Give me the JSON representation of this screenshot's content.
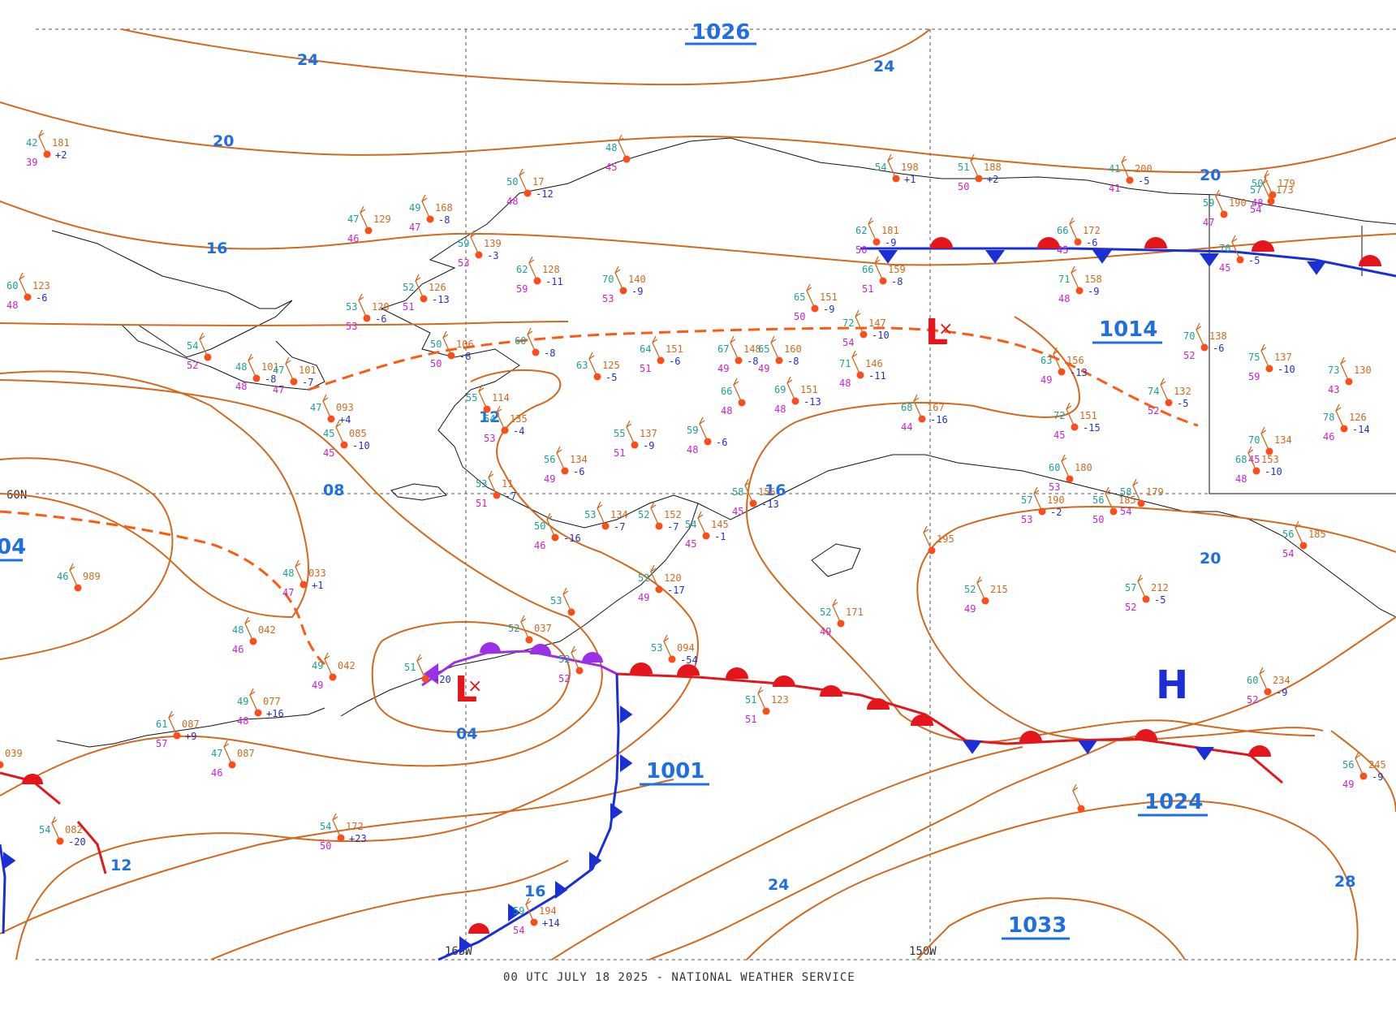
{
  "footer": "00 UTC JULY 18 2025 - NATIONAL WEATHER SERVICE",
  "grid_labels": {
    "lat_60": "60N",
    "lon_165": "165W",
    "lon_150": "150W"
  },
  "isobar_labels": [
    "24",
    "24",
    "20",
    "16",
    "12",
    "08",
    "04",
    "16",
    "20",
    "20",
    "12",
    "16",
    "24",
    "28"
  ],
  "pressure_centers": {
    "top": "1026",
    "left": "04",
    "low_mid": "1001",
    "high_mid": "1014",
    "high_se": "1024",
    "high_s": "1033"
  },
  "symbols": {
    "low": "L",
    "high": "H"
  },
  "colors": {
    "isobar": "#d2691e",
    "cold_front": "#1a2fd6",
    "warm_front": "#e4161b",
    "occluded_front": "#9b30e6",
    "trough": "#ff5a14",
    "label_blue": "#1f6fe0"
  },
  "stations": [
    {
      "t": "42",
      "p": "181",
      "d": "39",
      "tend": "+2"
    },
    {
      "t": "50",
      "p": "17",
      "d": "48",
      "tend": "-12"
    },
    {
      "t": "48",
      "p": "",
      "d": "45",
      "tend": ""
    },
    {
      "t": "49",
      "p": "168",
      "d": "47",
      "tend": "-8"
    },
    {
      "t": "47",
      "p": "129",
      "d": "46",
      "tend": ""
    },
    {
      "t": "60",
      "p": "123",
      "d": "48",
      "tend": "-6"
    },
    {
      "t": "59",
      "p": "139",
      "d": "53",
      "tend": "-3"
    },
    {
      "t": "62",
      "p": "128",
      "d": "59",
      "tend": "-11"
    },
    {
      "t": "70",
      "p": "140",
      "d": "53",
      "tend": "-9"
    },
    {
      "t": "52",
      "p": "126",
      "d": "51",
      "tend": "-13"
    },
    {
      "t": "53",
      "p": "120",
      "d": "53",
      "tend": "-6"
    },
    {
      "t": "54",
      "p": "",
      "d": "52",
      "tend": ""
    },
    {
      "t": "50",
      "p": "106",
      "d": "50",
      "tend": "-8"
    },
    {
      "t": "60",
      "p": "",
      "d": "",
      "tend": "-8"
    },
    {
      "t": "48",
      "p": "101",
      "d": "48",
      "tend": "-8"
    },
    {
      "t": "47",
      "p": "101",
      "d": "47",
      "tend": "-7"
    },
    {
      "t": "47",
      "p": "093",
      "d": "",
      "tend": "+4"
    },
    {
      "t": "45",
      "p": "085",
      "d": "45",
      "tend": "-10"
    },
    {
      "t": "55",
      "p": "114",
      "d": "",
      "tend": ""
    },
    {
      "t": "54",
      "p": "135",
      "d": "53",
      "tend": "-4"
    },
    {
      "t": "63",
      "p": "125",
      "d": "",
      "tend": "-5"
    },
    {
      "t": "56",
      "p": "134",
      "d": "49",
      "tend": "-6"
    },
    {
      "t": "55",
      "p": "137",
      "d": "51",
      "tend": "-9"
    },
    {
      "t": "59",
      "p": "",
      "d": "48",
      "tend": "-6"
    },
    {
      "t": "53",
      "p": "11",
      "d": "51",
      "tend": "-7"
    },
    {
      "t": "50",
      "p": "",
      "d": "46",
      "tend": "-16"
    },
    {
      "t": "53",
      "p": "134",
      "d": "",
      "tend": "-7"
    },
    {
      "t": "52",
      "p": "152",
      "d": "",
      "tend": "-7"
    },
    {
      "t": "54",
      "p": "145",
      "d": "45",
      "tend": "-1"
    },
    {
      "t": "52",
      "p": "120",
      "d": "49",
      "tend": "-17"
    },
    {
      "t": "58",
      "p": "156",
      "d": "45",
      "tend": "-13"
    },
    {
      "t": "64",
      "p": "151",
      "d": "51",
      "tend": "-6"
    },
    {
      "t": "67",
      "p": "148",
      "d": "49",
      "tend": "-8"
    },
    {
      "t": "65",
      "p": "160",
      "d": "49",
      "tend": "-8"
    },
    {
      "t": "66",
      "p": "",
      "d": "48",
      "tend": ""
    },
    {
      "t": "69",
      "p": "151",
      "d": "48",
      "tend": "-13"
    },
    {
      "t": "65",
      "p": "151",
      "d": "50",
      "tend": "-9"
    },
    {
      "t": "72",
      "p": "147",
      "d": "54",
      "tend": "-10"
    },
    {
      "t": "71",
      "p": "146",
      "d": "48",
      "tend": "-11"
    },
    {
      "t": "66",
      "p": "159",
      "d": "51",
      "tend": "-8"
    },
    {
      "t": "62",
      "p": "181",
      "d": "50",
      "tend": "-9"
    },
    {
      "t": "54",
      "p": "198",
      "d": "",
      "tend": "+1"
    },
    {
      "t": "51",
      "p": "188",
      "d": "50",
      "tend": "+2"
    },
    {
      "t": "41",
      "p": "200",
      "d": "41",
      "tend": "-5"
    },
    {
      "t": "66",
      "p": "172",
      "d": "45",
      "tend": "-6"
    },
    {
      "t": "71",
      "p": "158",
      "d": "48",
      "tend": "-9"
    },
    {
      "t": "59",
      "p": "190",
      "d": "47",
      "tend": ""
    },
    {
      "t": "57",
      "p": "173",
      "d": "54",
      "tend": ""
    },
    {
      "t": "50",
      "p": "179",
      "d": "48",
      "tend": ""
    },
    {
      "t": "70",
      "p": "",
      "d": "45",
      "tend": "-5"
    },
    {
      "t": "70",
      "p": "138",
      "d": "52",
      "tend": "-6"
    },
    {
      "t": "63",
      "p": "156",
      "d": "49",
      "tend": "-13"
    },
    {
      "t": "75",
      "p": "137",
      "d": "59",
      "tend": "-10"
    },
    {
      "t": "73",
      "p": "130",
      "d": "43",
      "tend": ""
    },
    {
      "t": "74",
      "p": "132",
      "d": "52",
      "tend": "-5"
    },
    {
      "t": "72",
      "p": "151",
      "d": "45",
      "tend": "-15"
    },
    {
      "t": "68",
      "p": "167",
      "d": "44",
      "tend": "-16"
    },
    {
      "t": "70",
      "p": "134",
      "d": "45",
      "tend": ""
    },
    {
      "t": "68",
      "p": "153",
      "d": "48",
      "tend": "-10"
    },
    {
      "t": "78",
      "p": "126",
      "d": "46",
      "tend": "-14"
    },
    {
      "t": "60",
      "p": "180",
      "d": "53",
      "tend": ""
    },
    {
      "t": "57",
      "p": "190",
      "d": "53",
      "tend": "-2"
    },
    {
      "t": "58",
      "p": "179",
      "d": "54",
      "tend": ""
    },
    {
      "t": "56",
      "p": "185",
      "d": "50",
      "tend": ""
    },
    {
      "t": "56",
      "p": "185",
      "d": "54",
      "tend": ""
    },
    {
      "t": "52",
      "p": "215",
      "d": "49",
      "tend": ""
    },
    {
      "t": "57",
      "p": "212",
      "d": "52",
      "tend": "-5"
    },
    {
      "t": "52",
      "p": "171",
      "d": "49",
      "tend": ""
    },
    {
      "t": "",
      "p": "195",
      "d": "",
      "tend": ""
    },
    {
      "t": "51",
      "p": "123",
      "d": "51",
      "tend": ""
    },
    {
      "t": "60",
      "p": "234",
      "d": "52",
      "tend": "-9"
    },
    {
      "t": "56",
      "p": "245",
      "d": "49",
      "tend": "-9"
    },
    {
      "t": "53",
      "p": "094",
      "d": "",
      "tend": "-54"
    },
    {
      "t": "52",
      "p": "037",
      "d": "",
      "tend": ""
    },
    {
      "t": "53",
      "p": "",
      "d": "",
      "tend": ""
    },
    {
      "t": "52",
      "p": "",
      "d": "52",
      "tend": ""
    },
    {
      "t": "51",
      "p": "",
      "d": "",
      "tend": "-20"
    },
    {
      "t": "48",
      "p": "033",
      "d": "47",
      "tend": "+1"
    },
    {
      "t": "46",
      "p": "989",
      "d": "",
      "tend": ""
    },
    {
      "t": "48",
      "p": "042",
      "d": "46",
      "tend": ""
    },
    {
      "t": "49",
      "p": "042",
      "d": "49",
      "tend": ""
    },
    {
      "t": "49",
      "p": "077",
      "d": "48",
      "tend": "+16"
    },
    {
      "t": "61",
      "p": "087",
      "d": "57",
      "tend": "+9"
    },
    {
      "t": "47",
      "p": "087",
      "d": "46",
      "tend": ""
    },
    {
      "t": "54",
      "p": "172",
      "d": "50",
      "tend": "+23"
    },
    {
      "t": "54",
      "p": "082",
      "d": "",
      "tend": "-20"
    },
    {
      "t": "",
      "p": "039",
      "d": "",
      "tend": ""
    },
    {
      "t": "59",
      "p": "194",
      "d": "54",
      "tend": "+14"
    },
    {
      "t": "",
      "p": "",
      "d": "",
      "tend": ""
    }
  ]
}
